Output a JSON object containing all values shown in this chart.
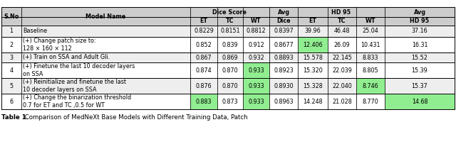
{
  "title_bold": "Table 1.",
  "title_rest": " Comparison of MedNeXt Base Models with Different Training Data, Patch",
  "rows": [
    {
      "sno": "1",
      "model_lines": [
        "Baseline"
      ],
      "et_dice": "0.8229",
      "tc_dice": "0.8151",
      "wt_dice": "0.8812",
      "avg_dice": "0.8397",
      "et_hd": "39.96",
      "tc_hd": "46.48",
      "wt_hd": "25.04",
      "avg_hd": "37.16",
      "hl": {
        "et_dice": false,
        "tc_dice": false,
        "wt_dice": false,
        "avg_dice": false,
        "et_hd": false,
        "tc_hd": false,
        "wt_hd": false,
        "avg_hd": false
      },
      "row_bg": "#eeeeee"
    },
    {
      "sno": "2",
      "model_lines": [
        "(+) Change patch size to:",
        "128 × 160 × 112"
      ],
      "et_dice": "0.852",
      "tc_dice": "0.839",
      "wt_dice": "0.912",
      "avg_dice": "0.8677",
      "et_hd": "12.406",
      "tc_hd": "26.09",
      "wt_hd": "10.431",
      "avg_hd": "16.31",
      "hl": {
        "et_dice": false,
        "tc_dice": false,
        "wt_dice": false,
        "avg_dice": false,
        "et_hd": true,
        "tc_hd": false,
        "wt_hd": false,
        "avg_hd": false
      },
      "row_bg": "#ffffff"
    },
    {
      "sno": "3",
      "model_lines": [
        "(+) Train on SSA and Adult Gli."
      ],
      "et_dice": "0.867",
      "tc_dice": "0.869",
      "wt_dice": "0.932",
      "avg_dice": "0.8893",
      "et_hd": "15.578",
      "tc_hd": "22.145",
      "wt_hd": "8.833",
      "avg_hd": "15.52",
      "hl": {
        "et_dice": false,
        "tc_dice": false,
        "wt_dice": false,
        "avg_dice": false,
        "et_hd": false,
        "tc_hd": false,
        "wt_hd": false,
        "avg_hd": false
      },
      "row_bg": "#eeeeee"
    },
    {
      "sno": "4",
      "model_lines": [
        "(+) Finetune the last 10 decoder layers",
        "on SSA"
      ],
      "et_dice": "0.874",
      "tc_dice": "0.870",
      "wt_dice": "0.933",
      "avg_dice": "0.8923",
      "et_hd": "15.320",
      "tc_hd": "22.039",
      "wt_hd": "8.805",
      "avg_hd": "15.39",
      "hl": {
        "et_dice": false,
        "tc_dice": false,
        "wt_dice": true,
        "avg_dice": false,
        "et_hd": false,
        "tc_hd": false,
        "wt_hd": false,
        "avg_hd": false
      },
      "row_bg": "#ffffff"
    },
    {
      "sno": "5",
      "model_lines": [
        "(+) Reinitialize and finetune the last",
        "10 decoder layers on SSA"
      ],
      "et_dice": "0.876",
      "tc_dice": "0.870",
      "wt_dice": "0.933",
      "avg_dice": "0.8930",
      "et_hd": "15.328",
      "tc_hd": "22.040",
      "wt_hd": "8.746",
      "avg_hd": "15.37",
      "hl": {
        "et_dice": false,
        "tc_dice": false,
        "wt_dice": true,
        "avg_dice": false,
        "et_hd": false,
        "tc_hd": false,
        "wt_hd": true,
        "avg_hd": false
      },
      "row_bg": "#eeeeee"
    },
    {
      "sno": "6",
      "model_lines": [
        "(+) Change the binarization threshold",
        "0.7 for ET and TC ,0.5 for WT"
      ],
      "et_dice": "0.883",
      "tc_dice": "0.873",
      "wt_dice": "0.933",
      "avg_dice": "0.8963",
      "et_hd": "14.248",
      "tc_hd": "21.028",
      "wt_hd": "8.770",
      "avg_hd": "14.68",
      "hl": {
        "et_dice": true,
        "tc_dice": false,
        "wt_dice": true,
        "avg_dice": false,
        "et_hd": false,
        "tc_hd": false,
        "wt_hd": false,
        "avg_hd": true
      },
      "row_bg": "#ffffff"
    }
  ],
  "highlight_color": "#90EE90",
  "header_bg": "#cccccc"
}
